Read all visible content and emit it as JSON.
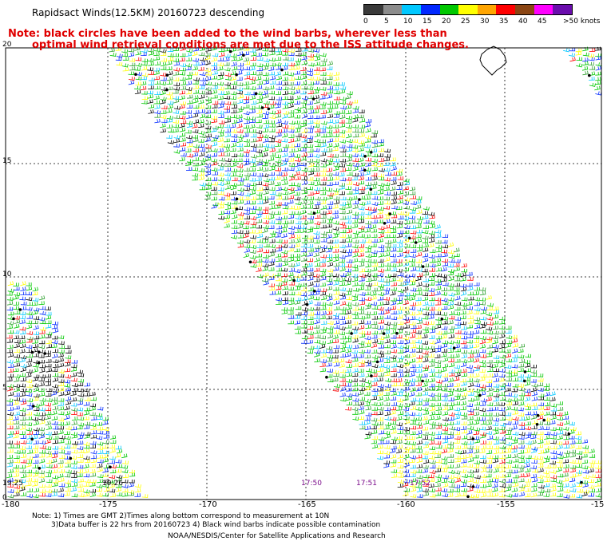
{
  "title": "Rapidsact Winds(12.5KM) 20160723 descending",
  "note_line1": "Note: black circles have been added to the wind barbs, wherever less than",
  "note_line2": "optimal wind retrieval conditions are met due to the ISS attitude changes.",
  "colorbar": {
    "labels": [
      "0",
      "5",
      "10",
      "15",
      "20",
      "25",
      "30",
      "35",
      "40",
      "45",
      ">50 knots"
    ],
    "colors": [
      "#3a3a3a",
      "#8c8c8c",
      "#00c8ff",
      "#0028ff",
      "#00c800",
      "#ffff00",
      "#ffa500",
      "#ff0000",
      "#8b4513",
      "#ff00ff",
      "#6a0dad"
    ]
  },
  "lat_labels": [
    "20",
    "15",
    "10",
    "5",
    "0"
  ],
  "lon_labels": [
    "-180",
    "-175",
    "-170",
    "-165",
    "-160",
    "-155",
    "-15"
  ],
  "time_labels": {
    "t1": "19:25",
    "t2": "19:26",
    "t3": "17:50",
    "t4": "17:51",
    "t5": "17:52"
  },
  "footer": {
    "line1": "Note: 1) Times are GMT 2)Times along bottom correspond to measurement at 10N",
    "line2": "3)Data buffer is 22 hrs from 20160723 4) Black wind barbs indicate possible contamination",
    "line3": "NOAA/NESDIS/Center for Satellite Applications and Research"
  }
}
